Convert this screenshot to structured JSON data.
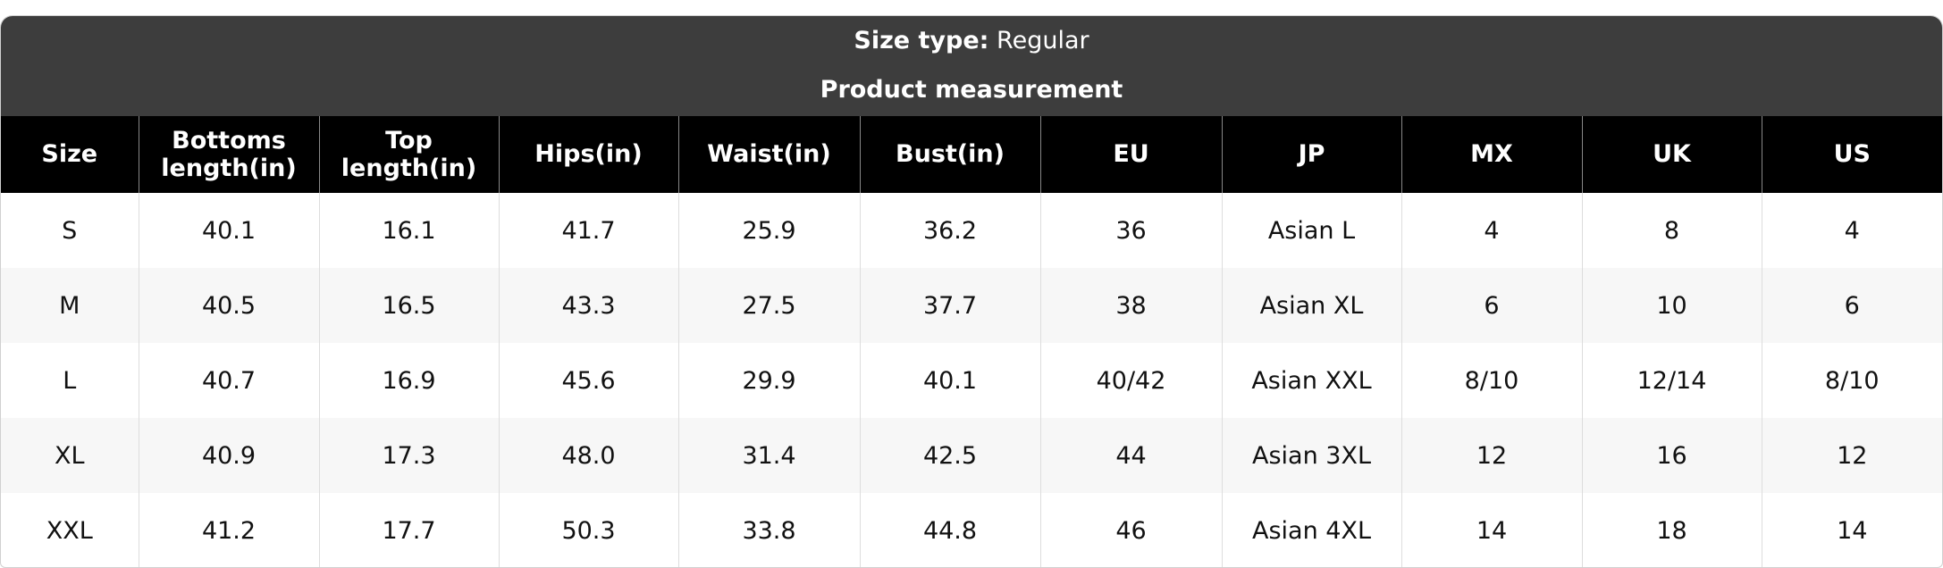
{
  "header": {
    "title_label": "Size type:",
    "title_value": "Regular",
    "subtitle": "Product measurement"
  },
  "table": {
    "columns": [
      "Size",
      "Bottoms length(in)",
      "Top length(in)",
      "Hips(in)",
      "Waist(in)",
      "Bust(in)",
      "EU",
      "JP",
      "MX",
      "UK",
      "US"
    ],
    "rows": [
      [
        "S",
        "40.1",
        "16.1",
        "41.7",
        "25.9",
        "36.2",
        "36",
        "Asian L",
        "4",
        "8",
        "4"
      ],
      [
        "M",
        "40.5",
        "16.5",
        "43.3",
        "27.5",
        "37.7",
        "38",
        "Asian XL",
        "6",
        "10",
        "6"
      ],
      [
        "L",
        "40.7",
        "16.9",
        "45.6",
        "29.9",
        "40.1",
        "40/42",
        "Asian XXL",
        "8/10",
        "12/14",
        "8/10"
      ],
      [
        "XL",
        "40.9",
        "17.3",
        "48.0",
        "31.4",
        "42.5",
        "44",
        "Asian 3XL",
        "12",
        "16",
        "12"
      ],
      [
        "XXL",
        "41.2",
        "17.7",
        "50.3",
        "33.8",
        "44.8",
        "46",
        "Asian 4XL",
        "14",
        "18",
        "14"
      ]
    ]
  }
}
